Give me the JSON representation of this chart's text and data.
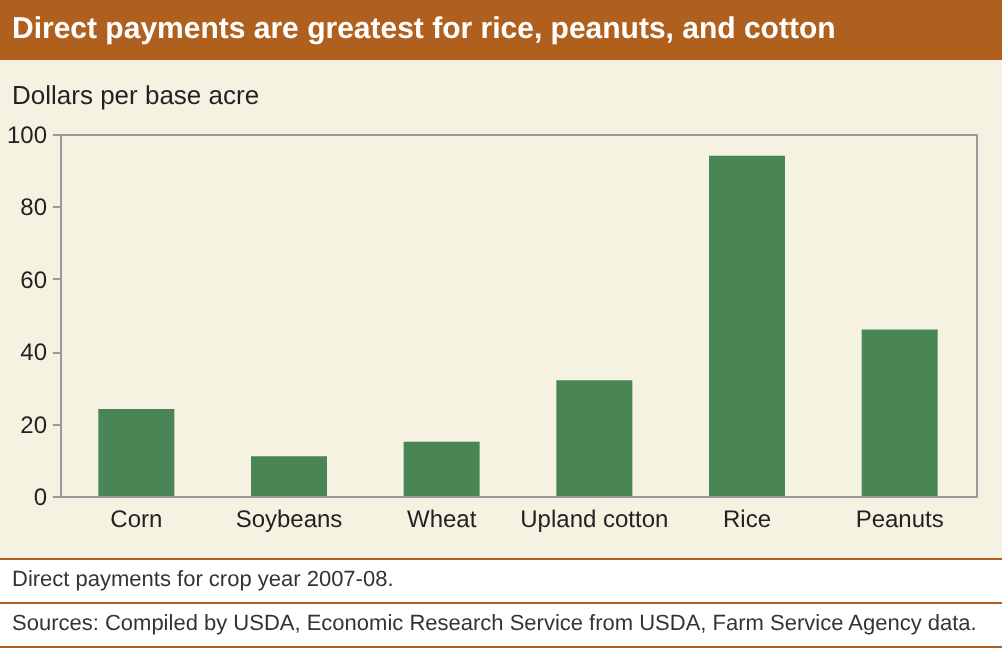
{
  "chart_data": {
    "type": "bar",
    "title": "Direct payments are greatest for rice, peanuts, and cotton",
    "ylabel": "Dollars per base acre",
    "categories": [
      "Corn",
      "Soybeans",
      "Wheat",
      "Upland cotton",
      "Rice",
      "Peanuts"
    ],
    "values": [
      24,
      11,
      15,
      32,
      94,
      46
    ],
    "color": "#4a8655",
    "ylim": [
      0,
      100
    ],
    "yticks": [
      0,
      20,
      40,
      60,
      80,
      100
    ],
    "grid": false,
    "annotations": [
      "Direct payments for crop year 2007-08.",
      "Sources:  Compiled by USDA, Economic Research Service from USDA, Farm Service Agency data."
    ]
  }
}
